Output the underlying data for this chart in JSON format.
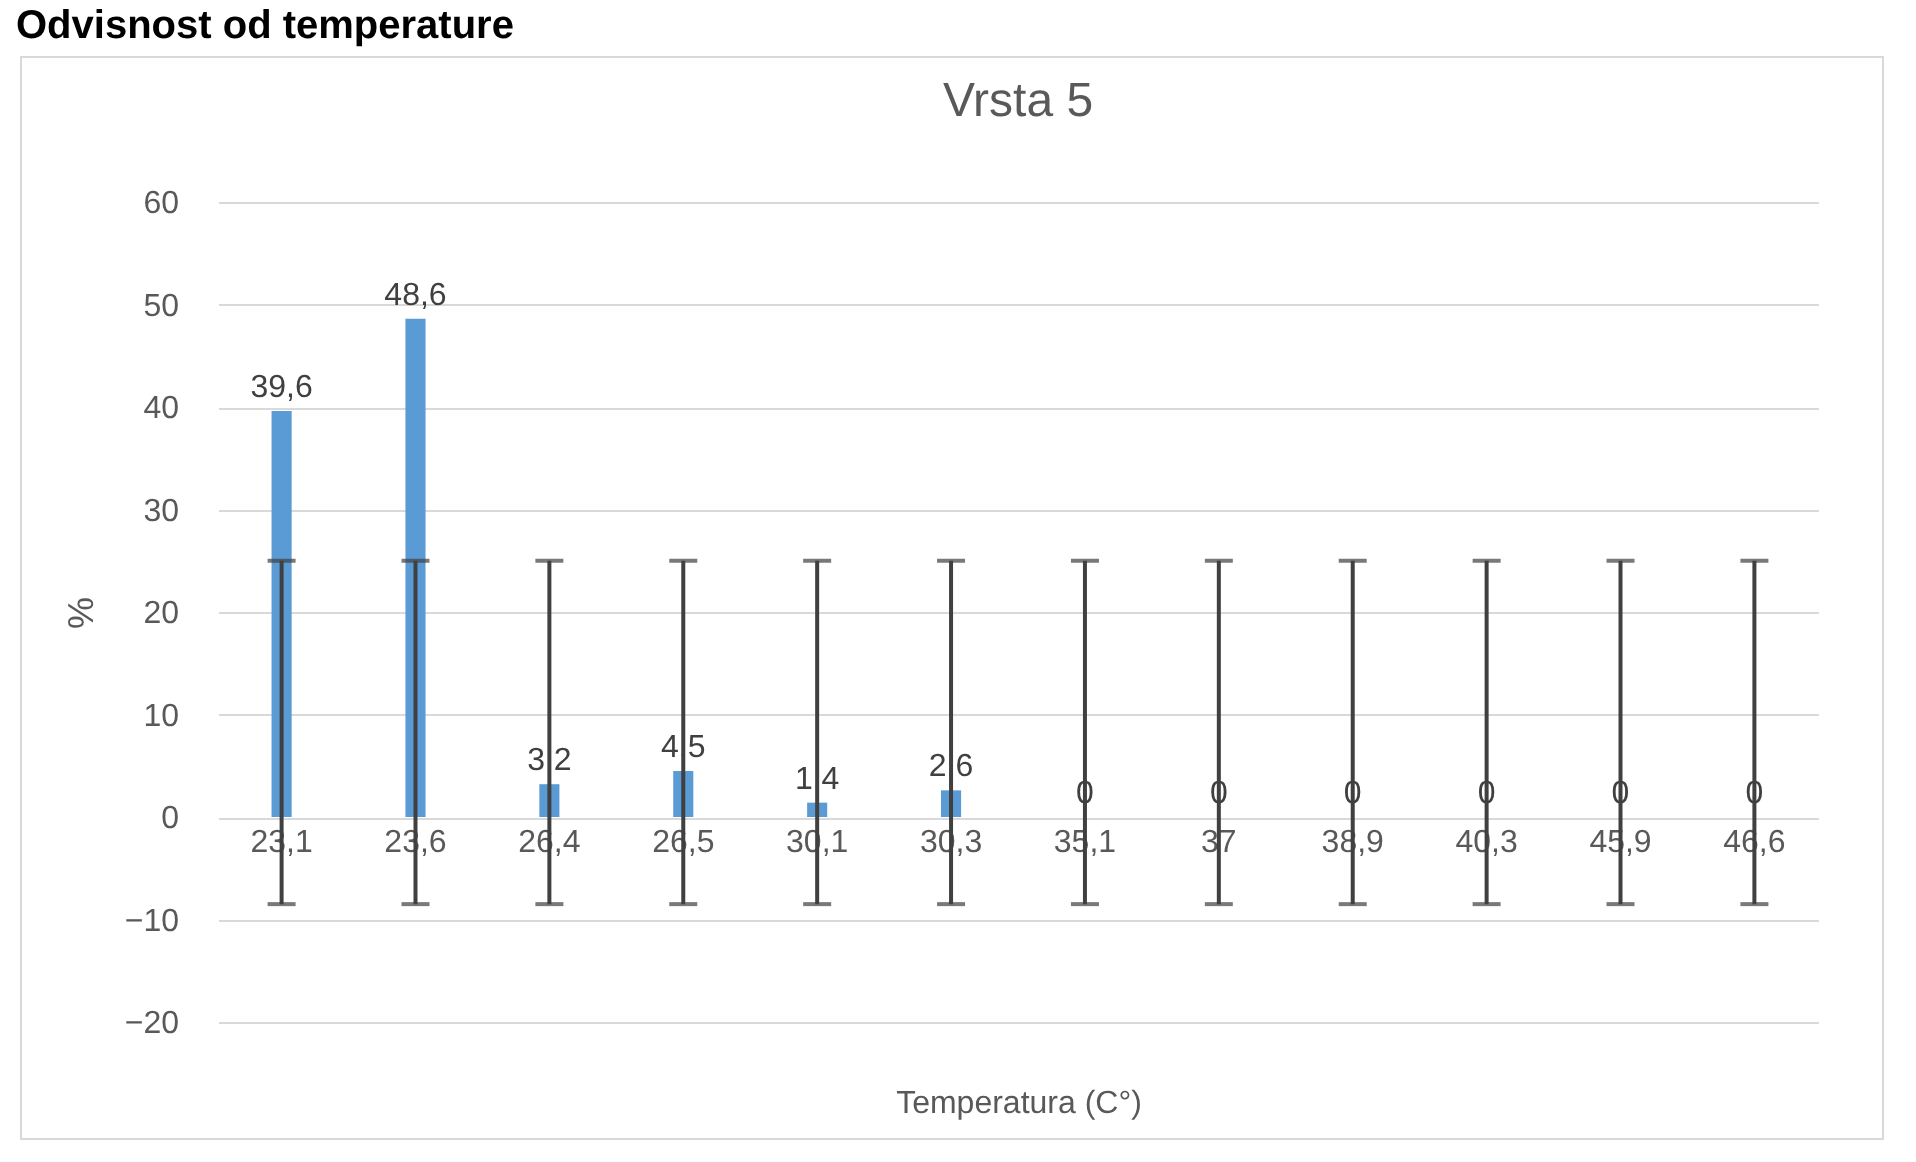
{
  "chart_data": {
    "type": "bar",
    "title": "Vrsta 5",
    "xlabel": "Temperatura (C°)",
    "ylabel": "%",
    "annotations": [
      "Odvisnost od temperature"
    ],
    "categories": [
      "23,1",
      "23,6",
      "26,4",
      "26,5",
      "30,1",
      "30,3",
      "35,1",
      "37",
      "38,9",
      "40,3",
      "45,9",
      "46,6"
    ],
    "values": [
      39.6,
      48.6,
      3.2,
      4.5,
      1.4,
      2.6,
      0,
      0,
      0,
      0,
      0,
      0
    ],
    "value_labels": [
      "39,6",
      "48,6",
      "3,2",
      "4,5",
      "1,4",
      "2,6",
      "0",
      "0",
      "0",
      "0",
      "0",
      "0"
    ],
    "errors": [
      [
        -8.5,
        25
      ],
      [
        -8.5,
        25
      ],
      [
        -8.5,
        25
      ],
      [
        -8.5,
        25
      ],
      [
        -8.5,
        25
      ],
      [
        -8.5,
        25
      ],
      [
        -8.5,
        25
      ],
      [
        -8.5,
        25
      ],
      [
        -8.5,
        25
      ],
      [
        -8.5,
        25
      ],
      [
        -8.5,
        25
      ],
      [
        -8.5,
        25
      ]
    ],
    "color": "#5b9bd5",
    "ylim": [
      -20,
      60
    ],
    "yticks": [
      -20,
      -10,
      0,
      10,
      20,
      30,
      40,
      50,
      60
    ],
    "grid": "y"
  }
}
